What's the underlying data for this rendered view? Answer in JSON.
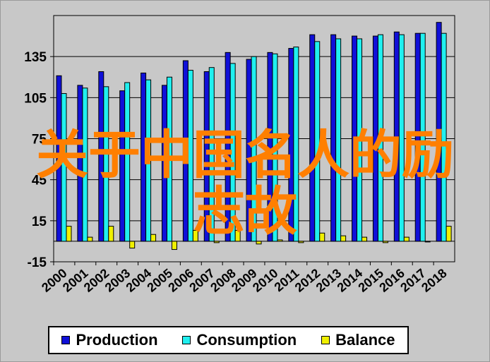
{
  "overlay_text": {
    "line1": "关于中国名人的励",
    "line2": "志故"
  },
  "colors": {
    "production": "#1010d8",
    "consumption": "#20f0f0",
    "balance": "#f0f000",
    "plot_bg": "#c8c8c8",
    "overlay": "#ff7f00"
  },
  "chart_data": {
    "type": "bar",
    "categories": [
      "2000",
      "2001",
      "2002",
      "2003",
      "2004",
      "2005",
      "2006",
      "2007",
      "2008",
      "2009",
      "2010",
      "2011",
      "2012",
      "2013",
      "2014",
      "2015",
      "2016",
      "2017",
      "2018"
    ],
    "series": [
      {
        "name": "Production",
        "values": [
          121,
          114,
          124,
          110,
          123,
          114,
          132,
          124,
          138,
          133,
          138,
          141,
          151,
          151,
          150,
          150,
          153,
          152,
          160
        ]
      },
      {
        "name": "Consumption",
        "values": [
          108,
          112,
          113,
          116,
          118,
          120,
          125,
          127,
          130,
          135,
          137,
          142,
          146,
          148,
          148,
          151,
          151,
          152,
          152
        ]
      },
      {
        "name": "Balance",
        "values": [
          11,
          3,
          11,
          -5,
          5,
          -6,
          8,
          -1,
          8,
          -2,
          1,
          -1,
          6,
          4,
          3,
          -1,
          3,
          0,
          11
        ]
      }
    ],
    "y_ticks": [
      "-15",
      "15",
      "45",
      "75",
      "105",
      "135"
    ],
    "ylim": [
      -15,
      165
    ],
    "grid": true,
    "legend_position": "bottom",
    "xlabel": "",
    "ylabel": "",
    "title": ""
  }
}
